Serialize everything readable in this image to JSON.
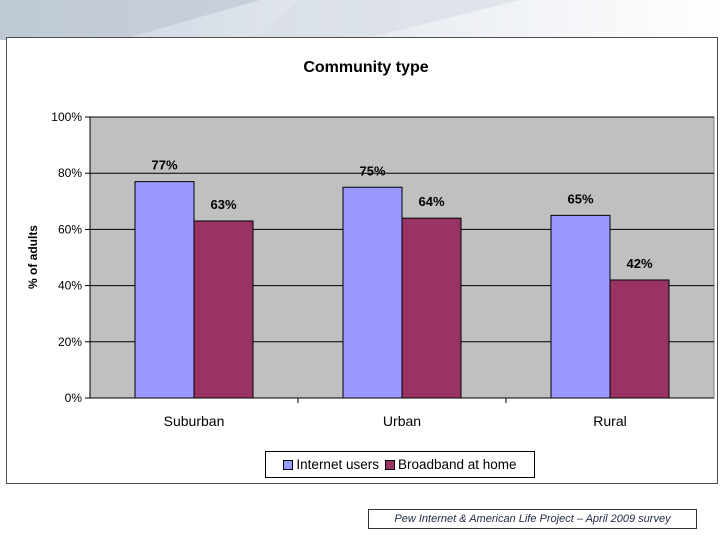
{
  "chart_data": {
    "type": "bar",
    "title": "Community type",
    "xlabel": "",
    "ylabel": "% of adults",
    "categories": [
      "Suburban",
      "Urban",
      "Rural"
    ],
    "series": [
      {
        "name": "Internet users",
        "color": "#9999ff",
        "values": [
          77,
          75,
          65
        ],
        "labels": [
          "77%",
          "75%",
          "65%"
        ]
      },
      {
        "name": "Broadband at home",
        "color": "#993366",
        "values": [
          63,
          64,
          42
        ],
        "labels": [
          "63%",
          "64%",
          "42%"
        ]
      }
    ],
    "ylim": [
      0,
      100
    ],
    "yticks": [
      0,
      20,
      40,
      60,
      80,
      100
    ],
    "ytick_labels": [
      "0%",
      "20%",
      "40%",
      "60%",
      "80%",
      "100%"
    ],
    "grid": true,
    "plot_background": "#c0c0c0",
    "legend_position": "bottom"
  },
  "source_note": "Pew Internet & American Life Project – April 2009 survey"
}
